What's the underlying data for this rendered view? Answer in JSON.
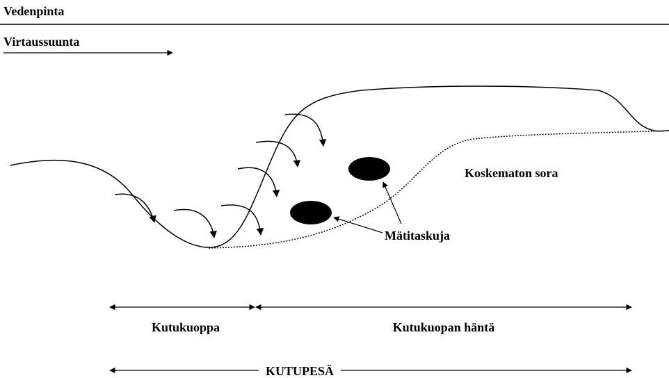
{
  "labels": {
    "water_surface": "Vedenpinta",
    "flow_direction": "Virtaussuunta",
    "undisturbed_gravel": "Koskematon sora",
    "egg_pockets": "Mätitaskuja",
    "pit": "Kutukuoppa",
    "tail": "Kutukuopan häntä",
    "redd": "KUTUPESÄ"
  }
}
